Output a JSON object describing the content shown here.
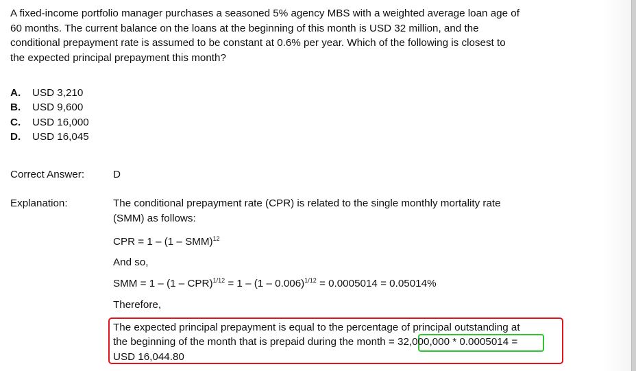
{
  "question": {
    "lines": [
      "A fixed-income portfolio manager purchases a seasoned 5% agency MBS with a weighted average loan age of",
      "60 months. The current balance on the loans at the beginning of this month is USD 32 million, and the",
      "conditional prepayment rate is assumed to be constant at 0.6% per year. Which of the following is closest to",
      "the expected principal prepayment this month?"
    ]
  },
  "options": [
    {
      "letter": "A.",
      "text": "USD 3,210"
    },
    {
      "letter": "B.",
      "text": "USD 9,600"
    },
    {
      "letter": "C.",
      "text": "USD 16,000"
    },
    {
      "letter": "D.",
      "text": "USD 16,045"
    }
  ],
  "answer": {
    "label": "Correct Answer:",
    "value": "D"
  },
  "explanation": {
    "label": "Explanation:",
    "intro_lines": [
      "The conditional prepayment rate (CPR) is related to the single monthly mortality rate",
      "(SMM) as follows:"
    ],
    "formula1": {
      "text": "CPR = 1 – (1 – SMM)",
      "exp": "12"
    },
    "and_so": "And so,",
    "formula2": {
      "a": "SMM = 1 – (1 – CPR)",
      "exp1": "1/12",
      "b": " = 1 – (1 – 0.006)",
      "exp2": "1/12",
      "c": " = 0.0005014 = 0.05014%"
    },
    "therefore": "Therefore,",
    "conclusion": {
      "line1": "The expected principal prepayment is equal to the percentage of principal outstanding at",
      "line2_pre": "the beginning of the month that is prepaid during the month = ",
      "line2_calc": "32,000,000 *  0.0005014",
      "line2_post": " =",
      "line3": "USD 16,044.80"
    },
    "highlight_colors": {
      "outer": "#e0141e",
      "inner": "#2ec52e"
    }
  }
}
